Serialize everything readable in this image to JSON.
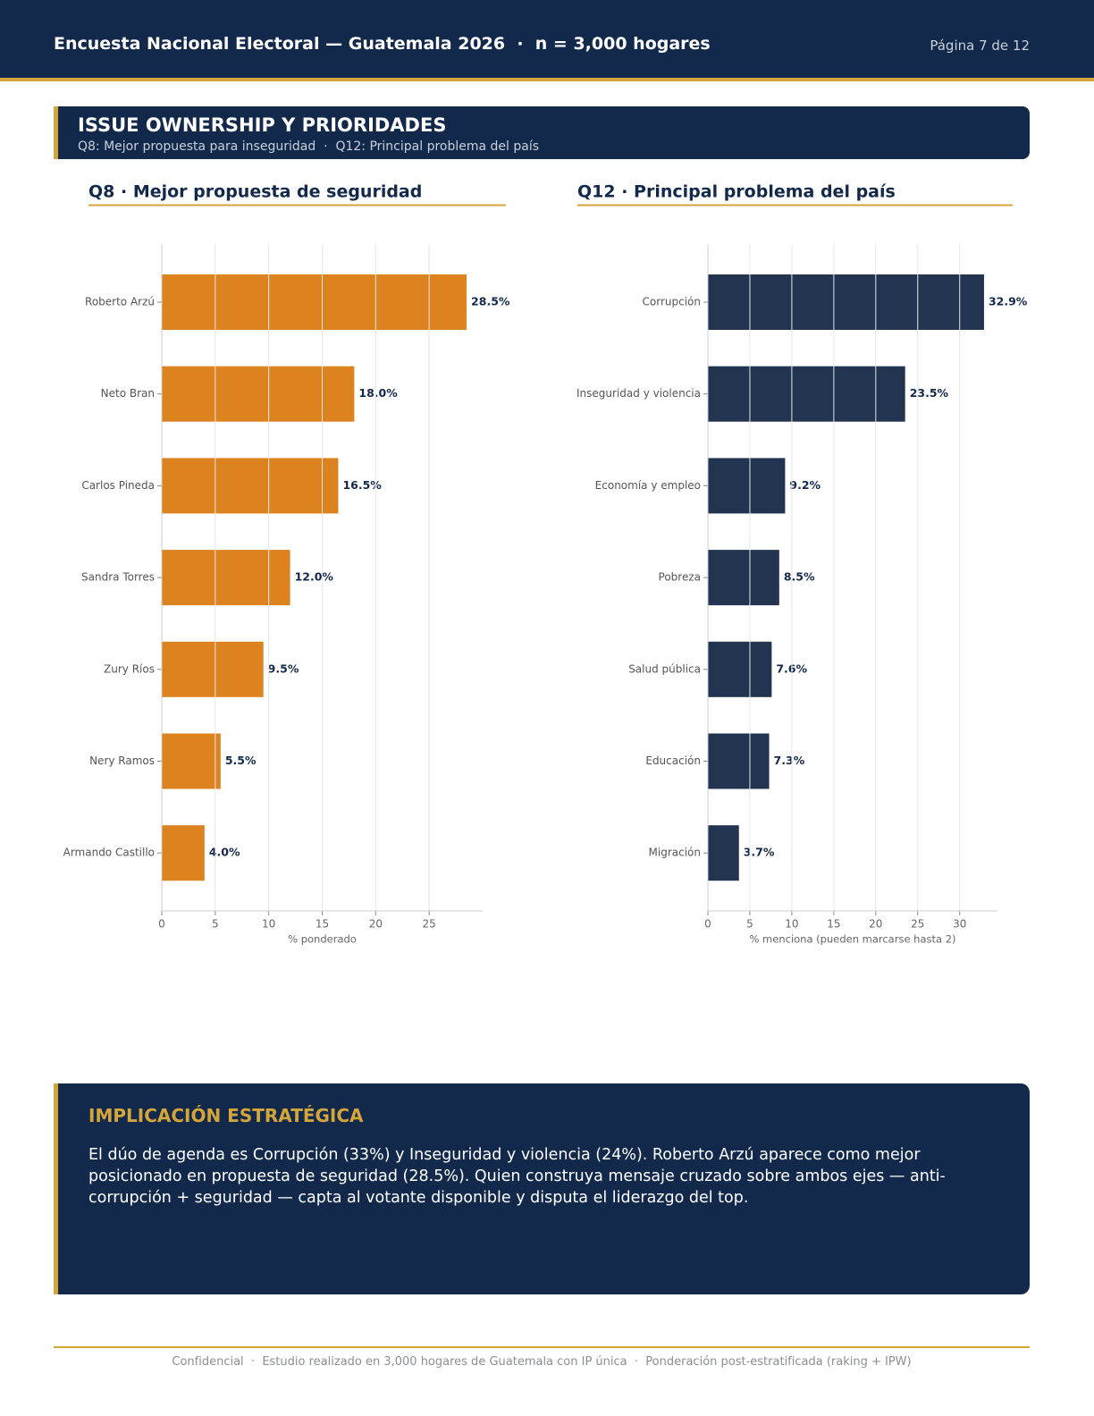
{
  "header": {
    "title": "Encuesta Nacional Electoral — Guatemala 2026  ·  n = 3,000 hogares",
    "page": "Página 7 de 12"
  },
  "section": {
    "title": "ISSUE OWNERSHIP Y PRIORIDADES",
    "subtitle": "Q8: Mejor propuesta para inseguridad  ·  Q12: Principal problema del país"
  },
  "chart_data": [
    {
      "type": "barh",
      "title": "Q8 · Mejor propuesta de seguridad",
      "xlabel": "% ponderado",
      "categories": [
        "Roberto Arzú",
        "Neto Bran",
        "Carlos Pineda",
        "Sandra Torres",
        "Zury Ríos",
        "Nery Ramos",
        "Armando Castillo"
      ],
      "values": [
        28.5,
        18.0,
        16.5,
        12.0,
        9.5,
        5.5,
        4.0
      ],
      "value_labels": [
        "28.5%",
        "18.0%",
        "16.5%",
        "12.0%",
        "9.5%",
        "5.5%",
        "4.0%"
      ],
      "color": "#DC8320",
      "xlim": [
        0,
        30
      ],
      "xticks": [
        0,
        5,
        10,
        15,
        20,
        25
      ],
      "grid": true
    },
    {
      "type": "barh",
      "title": "Q12 · Principal problema del país",
      "xlabel": "% menciona (pueden marcarse hasta 2)",
      "categories": [
        "Corrupción",
        "Inseguridad y violencia",
        "Economía y empleo",
        "Pobreza",
        "Salud pública",
        "Educación",
        "Migración"
      ],
      "values": [
        32.9,
        23.5,
        9.2,
        8.5,
        7.6,
        7.3,
        3.7
      ],
      "value_labels": [
        "32.9%",
        "23.5%",
        "9.2%",
        "8.5%",
        "7.6%",
        "7.3%",
        "3.7%"
      ],
      "color": "#22344F",
      "xlim": [
        0,
        34.5
      ],
      "xticks": [
        0,
        5,
        10,
        15,
        20,
        25,
        30
      ],
      "grid": true
    }
  ],
  "implication": {
    "title": "IMPLICACIÓN ESTRATÉGICA",
    "text": "El dúo de agenda es Corrupción (33%) y Inseguridad y violencia (24%). Roberto Arzú aparece como mejor posicionado en propuesta de seguridad (28.5%). Quien construya mensaje cruzado sobre ambos ejes — anti-corrupción + seguridad — capta al votante disponible y disputa el liderazgo del top."
  },
  "footer": {
    "text": "Confidencial  ·  Estudio realizado en 3,000 hogares de Guatemala con IP única  ·  Ponderación post-estratificada (raking + IPW)"
  }
}
